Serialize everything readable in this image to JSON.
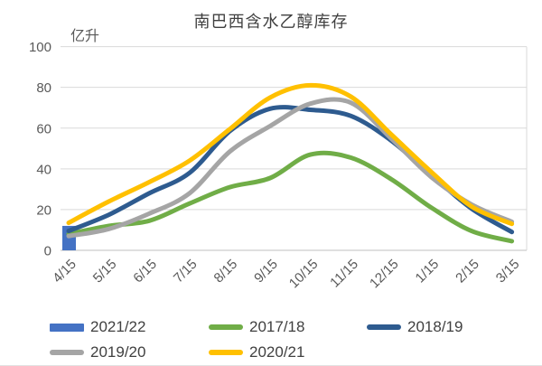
{
  "chart_data": {
    "type": "line",
    "title": "南巴西含水乙醇库存",
    "ylabel": "亿升",
    "xlabel": "",
    "ylim": [
      0,
      100
    ],
    "yticks": [
      0,
      20,
      40,
      60,
      80,
      100
    ],
    "grid": true,
    "legend_position": "bottom",
    "categories": [
      "4/15",
      "5/15",
      "6/15",
      "7/15",
      "8/15",
      "9/15",
      "10/15",
      "11/15",
      "12/15",
      "1/15",
      "2/15",
      "3/15"
    ],
    "series": [
      {
        "name": "2021/22",
        "type": "bar",
        "color": "#4472C4",
        "values": [
          12,
          null,
          null,
          null,
          null,
          null,
          null,
          null,
          null,
          null,
          null,
          null
        ]
      },
      {
        "name": "2017/18",
        "type": "line",
        "color": "#70AD47",
        "values": [
          8,
          12,
          14.5,
          23,
          31,
          35.5,
          47,
          45.5,
          35,
          21,
          9.5,
          4.5
        ]
      },
      {
        "name": "2018/19",
        "type": "line",
        "color": "#2E5B8F",
        "values": [
          9.5,
          17.5,
          28,
          38,
          58.5,
          69.5,
          69,
          66,
          54,
          37,
          20.5,
          9
        ]
      },
      {
        "name": "2019/20",
        "type": "line",
        "color": "#A5A5A5",
        "values": [
          7,
          10.5,
          18,
          28,
          48.5,
          61,
          72,
          72.5,
          55,
          36,
          22.5,
          14
        ]
      },
      {
        "name": "2020/21",
        "type": "line",
        "color": "#FFC000",
        "values": [
          13.5,
          24,
          33.5,
          44,
          59.5,
          75,
          81,
          75.5,
          57,
          38.5,
          21.5,
          13
        ]
      }
    ]
  },
  "colors": {
    "gridline": "#d9d9d9",
    "axis_line": "#bfbfbf",
    "tick_text": "#595959",
    "legend_text": "#404040",
    "title_text": "#3f3f3f"
  }
}
